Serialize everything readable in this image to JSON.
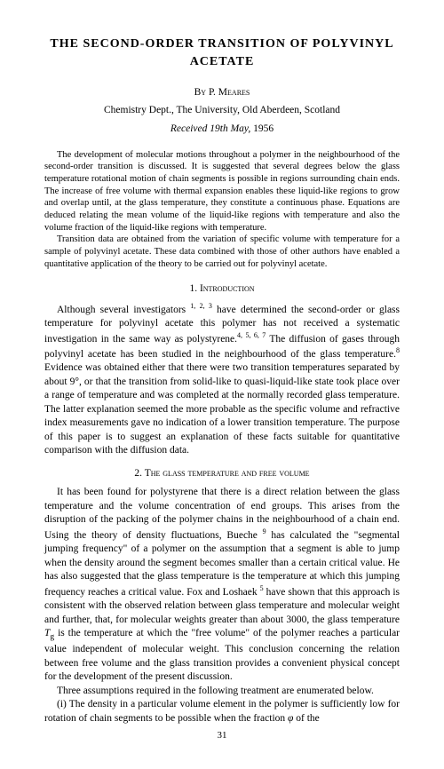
{
  "title": "THE SECOND-ORDER TRANSITION OF POLYVINYL ACETATE",
  "by_label": "By",
  "author": "P. Meares",
  "affiliation": "Chemistry Dept., The University, Old Aberdeen, Scotland",
  "received_prefix": "Received ",
  "received_day": "19",
  "received_suffix": "th May, ",
  "received_year": "1956",
  "abstract": {
    "p1": "The development of molecular motions throughout a polymer in the neighbourhood of the second-order transition is discussed. It is suggested that several degrees below the glass temperature rotational motion of chain segments is possible in regions surrounding chain ends. The increase of free volume with thermal expansion enables these liquid-like regions to grow and overlap until, at the glass temperature, they constitute a continuous phase. Equations are deduced relating the mean volume of the liquid-like regions with temperature and also the volume fraction of the liquid-like regions with temperature.",
    "p2": "Transition data are obtained from the variation of specific volume with temperature for a sample of polyvinyl acetate. These data combined with those of other authors have enabled a quantitative application of the theory to be carried out for polyvinyl acetate."
  },
  "section1": {
    "heading": "1. Introduction",
    "p1a": "Although several investigators ",
    "p1refs": "1, 2, 3",
    "p1b": " have determined the second-order or glass temperature for polyvinyl acetate this polymer has not received a systematic investigation in the same way as polystyrene.",
    "p1refs2": "4, 5, 6, 7",
    "p1c": " The diffusion of gases through polyvinyl acetate has been studied in the neighbourhood of the glass temperature.",
    "p1ref8": "8",
    "p1d": " Evidence was obtained either that there were two transition temperatures separated by about 9°, or that the transition from solid-like to quasi-liquid-like state took place over a range of temperature and was completed at the normally recorded glass temperature. The latter explanation seemed the more probable as the specific volume and refractive index measurements gave no indication of a lower transition temperature. The purpose of this paper is to suggest an explanation of these facts suitable for quantitative comparison with the diffusion data."
  },
  "section2": {
    "heading": "2. The glass temperature and free volume",
    "p1a": "It has been found for polystyrene that there is a direct relation between the glass temperature and the volume concentration of end groups. This arises from the disruption of the packing of the polymer chains in the neighbourhood of a chain end. Using the theory of density fluctuations, Bueche ",
    "p1ref9": "9",
    "p1b": " has calculated the \"segmental jumping frequency\" of a polymer on the assumption that a segment is able to jump when the density around the segment becomes smaller than a certain critical value. He has also suggested that the glass temperature is the temperature at which this jumping frequency reaches a critical value. Fox and Loshaek ",
    "p1ref5": "5",
    "p1c": " have shown that this approach is consistent with the observed relation between glass temperature and molecular weight and further, that, for molecular weights greater than about 3000, the glass temperature ",
    "p1Tg": "T",
    "p1Tgsub": "g",
    "p1d": " is the temperature at which the \"free volume\" of the polymer reaches a particular value independent of molecular weight. This conclusion concerning the relation between free volume and the glass transition provides a convenient physical concept for the development of the present discussion.",
    "p2": "Three assumptions required in the following treatment are enumerated below.",
    "p3a": "(i) The density in a particular volume element in the polymer is sufficiently low for rotation of chain segments to be possible when the fraction ",
    "p3phi": "φ",
    "p3b": " of the"
  },
  "page_number": "31"
}
